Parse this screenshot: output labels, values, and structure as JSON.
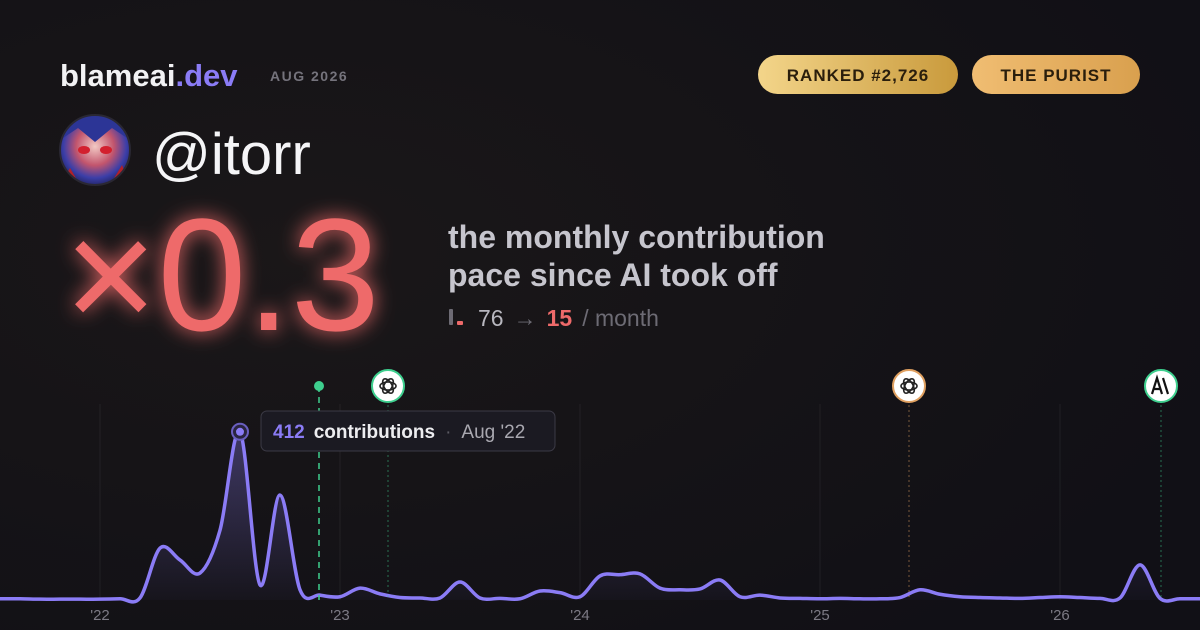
{
  "header": {
    "brand": "blameai",
    "brand_suffix": ".dev",
    "date": "AUG 2026",
    "badges": [
      "RANKED #2,726",
      "THE PURIST"
    ]
  },
  "profile": {
    "handle": "@itorr"
  },
  "headline": {
    "multiplier": "×0.3",
    "lines": [
      "the monthly contribution",
      "pace since AI took off"
    ],
    "before": 76,
    "arrow": "→",
    "after": 15,
    "unit": "/ month"
  },
  "tooltip": {
    "label": "contributions",
    "date": "Aug '22"
  },
  "chart_data": {
    "type": "line",
    "color": "#8b7cf6",
    "ylim": [
      0,
      480
    ],
    "categories": [
      null,
      null,
      null,
      null,
      null,
      "'22",
      null,
      null,
      null,
      null,
      null,
      null,
      null,
      null,
      null,
      null,
      null,
      "'23",
      null,
      null,
      null,
      null,
      null,
      null,
      null,
      null,
      null,
      null,
      null,
      "'24",
      null,
      null,
      null,
      null,
      null,
      null,
      null,
      null,
      null,
      null,
      null,
      "'25",
      null,
      null,
      null,
      null,
      null,
      null,
      null,
      null,
      null,
      null,
      null,
      "'26",
      null,
      null,
      null,
      null,
      null,
      null,
      null
    ],
    "values": [
      3,
      3,
      2,
      2,
      2,
      2,
      3,
      5,
      127,
      98,
      66,
      171,
      412,
      37,
      257,
      25,
      12,
      8,
      29,
      15,
      6,
      5,
      5,
      44,
      5,
      4,
      3,
      22,
      18,
      8,
      59,
      62,
      64,
      29,
      25,
      27,
      49,
      8,
      12,
      5,
      4,
      3,
      4,
      3,
      3,
      6,
      25,
      14,
      8,
      6,
      5,
      4,
      6,
      8,
      6,
      4,
      5,
      86,
      4,
      3,
      3
    ]
  }
}
